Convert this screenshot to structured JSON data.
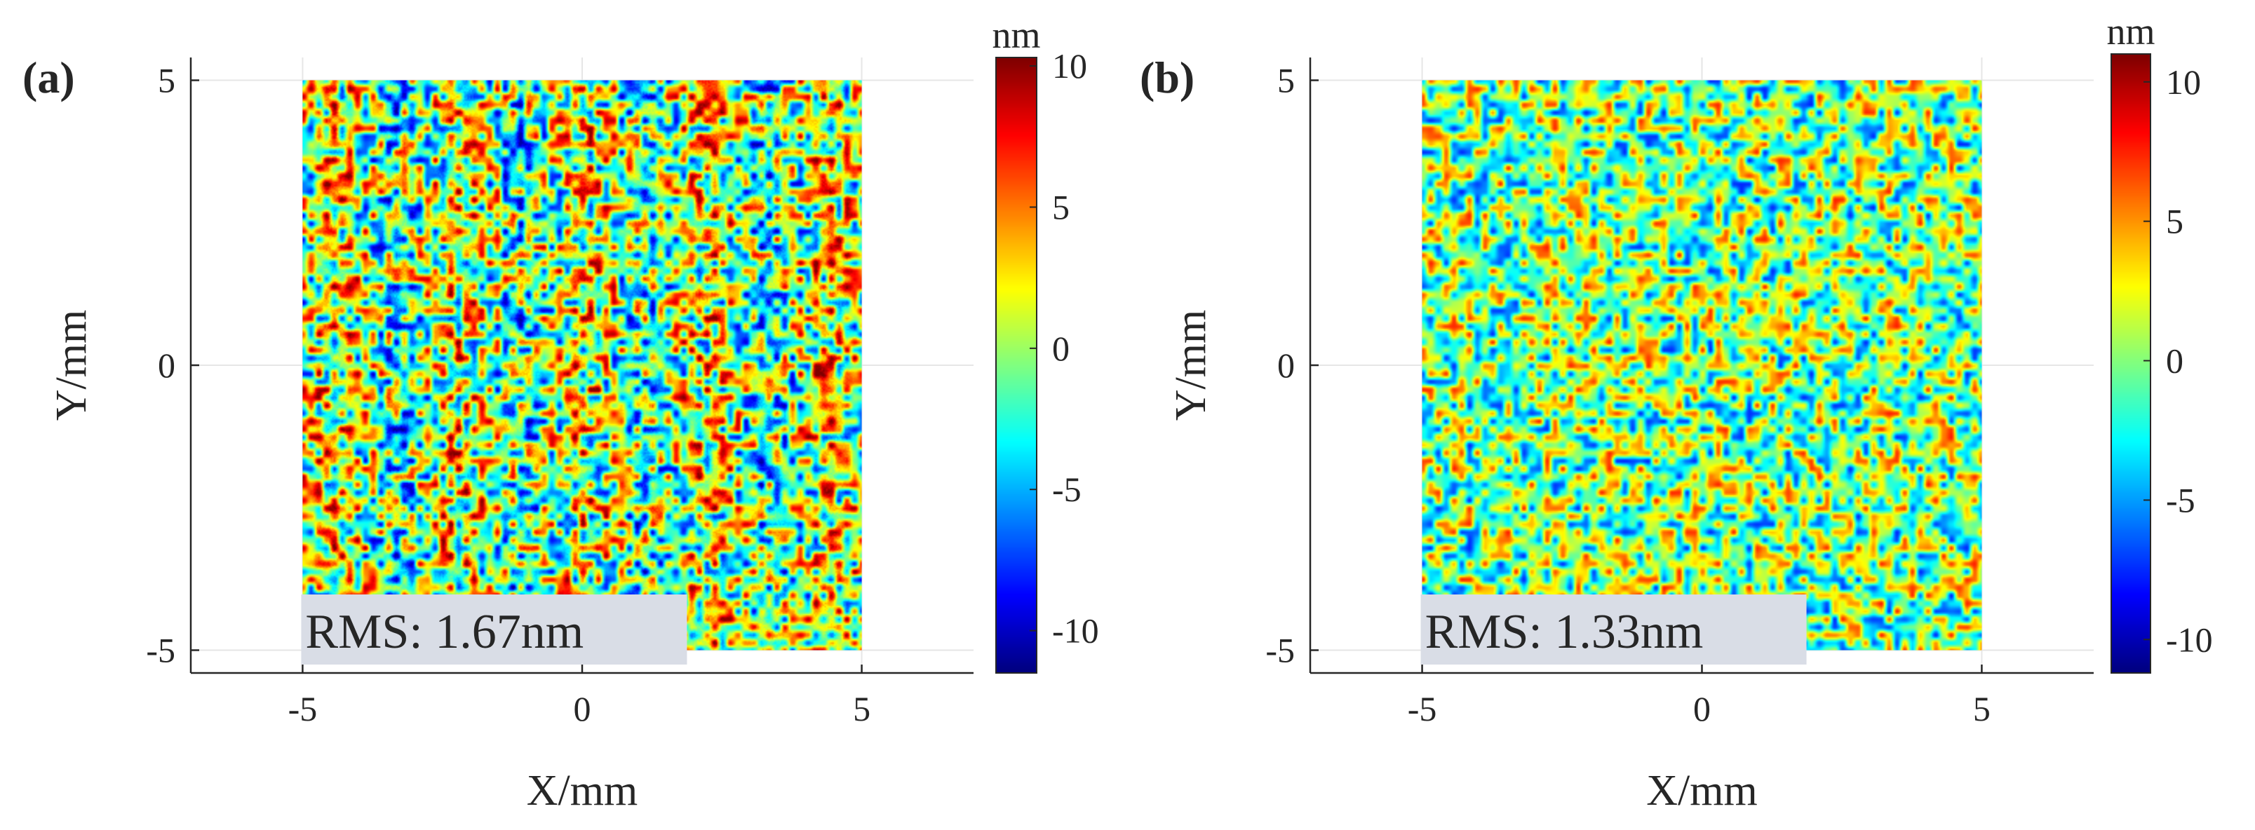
{
  "chart_data": [
    {
      "type": "heatmap",
      "panel_label": "(a)",
      "title": "",
      "xlabel": "X/mm",
      "ylabel": "Y/mm",
      "xlim": [
        -7,
        7
      ],
      "ylim": [
        -5.4,
        5.4
      ],
      "x_ticks": [
        -5,
        0,
        5
      ],
      "y_ticks": [
        -5,
        0,
        5
      ],
      "x_tick_labels": [
        "-5",
        "0",
        "5"
      ],
      "y_tick_labels": [
        "-5",
        "0",
        "5"
      ],
      "data_extent_x": [
        -5,
        5
      ],
      "data_extent_y": [
        -5,
        5
      ],
      "grid": true,
      "colormap": "jet",
      "colorbar": {
        "unit": "nm",
        "range": [
          -11.5,
          10.3
        ],
        "ticks": [
          10,
          5,
          0,
          -5,
          -10
        ],
        "tick_labels": [
          "10",
          "5",
          "0",
          "-5",
          "-10"
        ]
      },
      "annotation": "RMS: 1.67nm",
      "rms_nm": 1.67,
      "seed": 17
    },
    {
      "type": "heatmap",
      "panel_label": "(b)",
      "title": "",
      "xlabel": "X/mm",
      "ylabel": "Y/mm",
      "xlim": [
        -7,
        7
      ],
      "ylim": [
        -5.4,
        5.4
      ],
      "x_ticks": [
        -5,
        0,
        5
      ],
      "y_ticks": [
        -5,
        0,
        5
      ],
      "x_tick_labels": [
        "-5",
        "0",
        "5"
      ],
      "y_tick_labels": [
        "-5",
        "0",
        "5"
      ],
      "data_extent_x": [
        -5,
        5
      ],
      "data_extent_y": [
        -5,
        5
      ],
      "grid": true,
      "colormap": "jet",
      "colorbar": {
        "unit": "nm",
        "range": [
          -11.2,
          11
        ],
        "ticks": [
          10,
          5,
          0,
          -5,
          -10
        ],
        "tick_labels": [
          "10",
          "5",
          "0",
          "-5",
          "-10"
        ]
      },
      "annotation": "RMS: 1.33nm",
      "rms_nm": 1.33,
      "seed": 29
    }
  ],
  "colors": {
    "axis": "#262626",
    "grid": "#e6e6e6",
    "annotation_bg": "#d9dde6"
  }
}
